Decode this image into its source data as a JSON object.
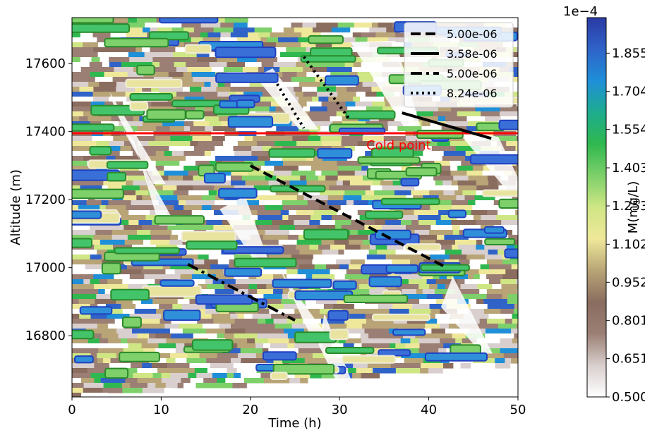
{
  "chart_data": {
    "type": "heatmap",
    "title": "",
    "xlabel": "Time (h)",
    "ylabel": "Altitude (m)",
    "xlim": [
      0,
      50
    ],
    "ylim": [
      16620,
      17735
    ],
    "xticks": [
      "0",
      "10",
      "20",
      "30",
      "40",
      "50"
    ],
    "yticks": [
      "16800",
      "17000",
      "17200",
      "17400",
      "17600"
    ],
    "grid": false,
    "legend_position": "top-right",
    "colorbar": {
      "label": "M(mg/L)",
      "exponent": "1e−4",
      "range": [
        0.5,
        1.995
      ],
      "ticks": [
        "0.500",
        "0.651",
        "0.801",
        "0.952",
        "1.102",
        "1.253",
        "1.403",
        "1.554",
        "1.704",
        "1.855"
      ],
      "colors": [
        "#ffffff",
        "#d8cfce",
        "#9b7f74",
        "#8a6d5f",
        "#b8a476",
        "#efe89a",
        "#cfe684",
        "#7ed06a",
        "#2fb84f",
        "#1eac8e",
        "#1f8fd8",
        "#2f63c8",
        "#2b3aa4"
      ]
    },
    "series": [
      {
        "name": "5.00e-06",
        "style": "dashed",
        "x": [
          20,
          42
        ],
        "y": [
          17300,
          17000
        ]
      },
      {
        "name": "3.58e-06",
        "style": "solid",
        "x": [
          37,
          47
        ],
        "y": [
          17455,
          17380
        ]
      },
      {
        "name": "5.00e-06",
        "style": "dashdot",
        "x": [
          13,
          25
        ],
        "y": [
          17010,
          16845
        ]
      },
      {
        "name": "8.24e-06",
        "style": "dotted",
        "x": [
          23,
          26
        ],
        "y": [
          17540,
          17410
        ]
      },
      {
        "name": "",
        "style": "dotted",
        "x": [
          26,
          31
        ],
        "y": [
          17620,
          17440
        ]
      }
    ],
    "annotations": [
      {
        "text": "Cold point",
        "x": 33,
        "y": 17360,
        "color": "#ff0000"
      }
    ],
    "reference_lines": [
      {
        "axis": "y",
        "value": 17395,
        "color": "#ff0000"
      }
    ]
  }
}
